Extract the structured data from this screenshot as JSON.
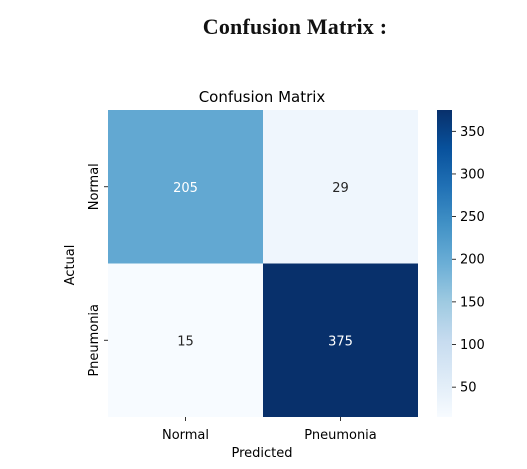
{
  "page": {
    "heading": "Confusion Matrix :"
  },
  "chart_data": {
    "type": "heatmap",
    "title": "Confusion Matrix",
    "xlabel": "Predicted",
    "ylabel": "Actual",
    "x_categories": [
      "Normal",
      "Pneumonia"
    ],
    "y_categories": [
      "Normal",
      "Pneumonia"
    ],
    "values": [
      [
        205,
        29
      ],
      [
        15,
        375
      ]
    ],
    "colormap": "Blues",
    "colorbar": {
      "min": 15,
      "max": 375,
      "ticks": [
        50,
        100,
        150,
        200,
        250,
        300,
        350
      ]
    },
    "colors": {
      "low": "#f7fbff",
      "mid": "#6baed6",
      "high": "#08306b",
      "text_dark": "#262626",
      "text_light": "#ffffff"
    }
  }
}
